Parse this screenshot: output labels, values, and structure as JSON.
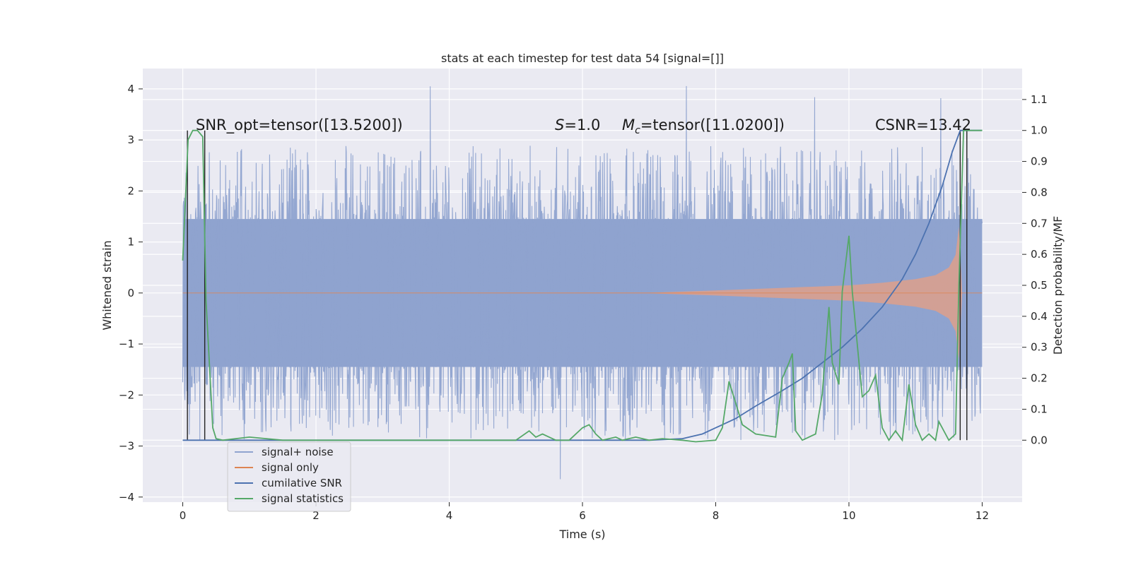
{
  "chart_data": {
    "type": "line",
    "title": "stats at each timestep for test data 54 [signal=[]]",
    "xlabel": "Time (s)",
    "ylabel": "Whitened strain",
    "ylabel_right": "Detection probability/MF",
    "xlim": [
      -0.6,
      12.6
    ],
    "ylim": [
      -4.1,
      4.4
    ],
    "ylim_right": [
      -0.2,
      1.2
    ],
    "x_ticks": [
      0,
      2,
      4,
      6,
      8,
      10,
      12
    ],
    "y_ticks": [
      -4,
      -3,
      -2,
      -1,
      0,
      1,
      2,
      3,
      4
    ],
    "y_ticks_right": [
      0.0,
      0.1,
      0.2,
      0.3,
      0.4,
      0.5,
      0.6,
      0.7,
      0.8,
      0.9,
      1.0,
      1.1
    ],
    "x_tick_labels": [
      "0",
      "2",
      "4",
      "6",
      "8",
      "10",
      "12"
    ],
    "y_tick_labels": [
      "−4",
      "−3",
      "−2",
      "−1",
      "0",
      "1",
      "2",
      "3",
      "4"
    ],
    "y_tick_labels_right": [
      "0.0",
      "0.1",
      "0.2",
      "0.3",
      "0.4",
      "0.5",
      "0.6",
      "0.7",
      "0.8",
      "0.9",
      "1.0",
      "1.1"
    ],
    "grid": true,
    "legend_position": "lower-left",
    "annotations": {
      "snr_opt": "SNR_opt=tensor([13.5200])",
      "s_label": "S",
      "s_value": "=1.0",
      "mc_label": "M",
      "mc_sub": "c",
      "mc_value": "=tensor([11.0200])",
      "csnr": "CSNR=13.42"
    },
    "vertical_lines_x": [
      0.07,
      0.33,
      11.67,
      11.77
    ],
    "series": [
      {
        "name": "signal+ noise",
        "color": "#8fa3cf",
        "axis": "left",
        "x_range": [
          0,
          12
        ],
        "band_lower": -1.45,
        "band_upper": 1.45,
        "spike_max": 4.1,
        "spike_min": -3.65
      },
      {
        "name": "signal only",
        "color": "#dd8452",
        "axis": "left",
        "x": [
          0,
          7,
          8,
          9,
          10,
          10.5,
          11,
          11.3,
          11.5,
          11.6,
          11.65,
          11.7,
          12
        ],
        "amplitude": [
          0,
          0.005,
          0.05,
          0.1,
          0.15,
          0.2,
          0.27,
          0.35,
          0.5,
          0.75,
          1.3,
          0,
          0
        ]
      },
      {
        "name": "cumilative SNR",
        "color": "#4c72b0",
        "axis": "right",
        "x": [
          0,
          7.0,
          7.5,
          7.8,
          8.0,
          8.3,
          8.6,
          9.0,
          9.3,
          9.6,
          9.9,
          10.2,
          10.5,
          10.8,
          11.0,
          11.2,
          11.4,
          11.55,
          11.67,
          11.72,
          12.0
        ],
        "y": [
          0,
          0,
          0.005,
          0.02,
          0.04,
          0.07,
          0.11,
          0.16,
          0.2,
          0.25,
          0.3,
          0.36,
          0.43,
          0.52,
          0.6,
          0.7,
          0.82,
          0.93,
          1.0,
          1.0,
          1.0
        ]
      },
      {
        "name": "signal statistics",
        "color": "#55a868",
        "axis": "right",
        "x": [
          0,
          0.08,
          0.15,
          0.22,
          0.3,
          0.35,
          0.45,
          0.5,
          0.6,
          1.0,
          1.5,
          2.0,
          3.0,
          4.0,
          5.0,
          5.2,
          5.3,
          5.4,
          5.5,
          5.6,
          5.8,
          6.0,
          6.1,
          6.2,
          6.3,
          6.5,
          6.6,
          6.8,
          7.0,
          7.2,
          7.5,
          7.7,
          8.0,
          8.1,
          8.2,
          8.4,
          8.6,
          8.9,
          9.0,
          9.1,
          9.15,
          9.2,
          9.3,
          9.5,
          9.6,
          9.7,
          9.75,
          9.85,
          9.9,
          10.0,
          10.05,
          10.2,
          10.3,
          10.4,
          10.5,
          10.6,
          10.7,
          10.8,
          10.9,
          11.0,
          11.1,
          11.2,
          11.3,
          11.35,
          11.5,
          11.6,
          11.65,
          11.72,
          11.77,
          11.8,
          11.85,
          11.9,
          12.0
        ],
        "y": [
          0.58,
          0.97,
          1.0,
          1.0,
          0.98,
          0.45,
          0.04,
          0.005,
          0.0,
          0.01,
          0.0,
          0.0,
          0.0,
          0.0,
          0.0,
          0.03,
          0.01,
          0.02,
          0.01,
          0.0,
          0.0,
          0.04,
          0.05,
          0.02,
          0.0,
          0.01,
          0.0,
          0.01,
          0.0,
          0.005,
          0.0,
          -0.005,
          0.0,
          0.04,
          0.19,
          0.05,
          0.02,
          0.01,
          0.2,
          0.25,
          0.28,
          0.03,
          0.0,
          0.02,
          0.15,
          0.43,
          0.25,
          0.18,
          0.48,
          0.66,
          0.48,
          0.14,
          0.16,
          0.21,
          0.04,
          0.0,
          0.03,
          0.0,
          0.18,
          0.05,
          0.0,
          0.02,
          0.0,
          0.06,
          0.0,
          0.02,
          0.5,
          1.0,
          1.0,
          1.0,
          1.0,
          1.0,
          1.0
        ]
      }
    ]
  }
}
